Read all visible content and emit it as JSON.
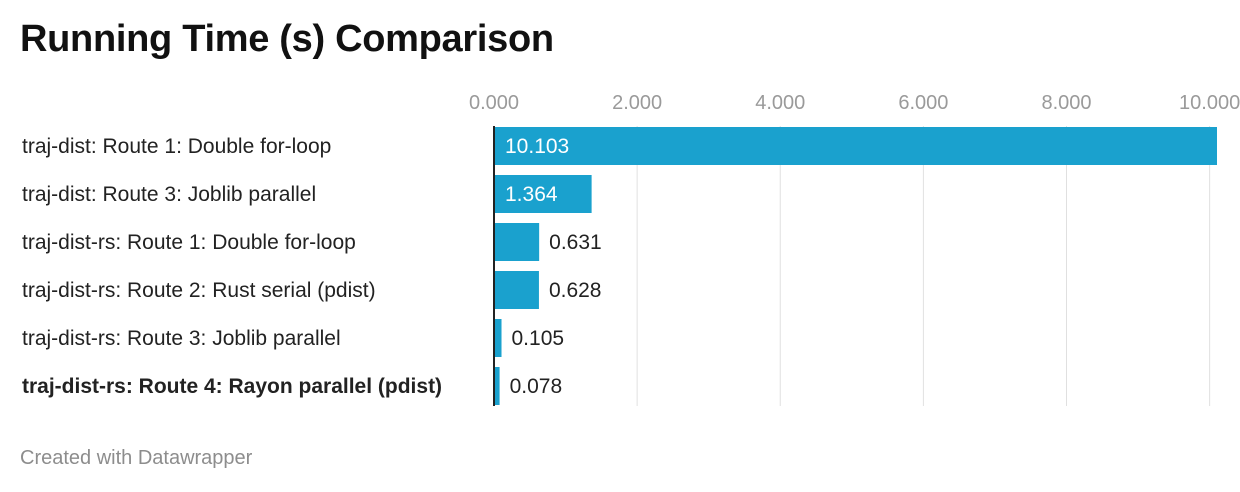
{
  "footer": "Created with Datawrapper",
  "colors": {
    "bar": "#1aa1ce",
    "grid": "#e0e0e0",
    "axis": "#222222",
    "label_inside": "#ffffff",
    "label_outside": "#222222"
  },
  "chart_data": {
    "type": "bar",
    "orientation": "horizontal",
    "title": "Running Time (s) Comparison",
    "categories": [
      "traj-dist: Route 1: Double for-loop",
      "traj-dist: Route 3: Joblib parallel",
      "traj-dist-rs: Route 1: Double for-loop",
      "traj-dist-rs: Route 2: Rust serial (pdist)",
      "traj-dist-rs: Route 3: Joblib parallel",
      "traj-dist-rs: Route 4: Rayon parallel (pdist)"
    ],
    "values": [
      10.103,
      1.364,
      0.631,
      0.628,
      0.105,
      0.078
    ],
    "value_labels": [
      "10.103",
      "1.364",
      "0.631",
      "0.628",
      "0.105",
      "0.078"
    ],
    "highlighted_category": "traj-dist-rs: Route 4: Rayon parallel (pdist)",
    "xticks": [
      0,
      2,
      4,
      6,
      8,
      10
    ],
    "xtick_labels": [
      "0.000",
      "2.000",
      "4.000",
      "6.000",
      "8.000",
      "10.000"
    ],
    "xlim": [
      0,
      10.103
    ],
    "grid": true,
    "axis_position": "top"
  }
}
